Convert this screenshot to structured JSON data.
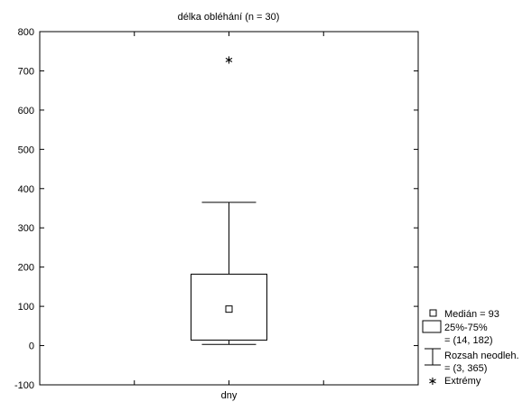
{
  "chart_data": {
    "type": "box",
    "title": "délka obléhání (n = 30)",
    "xlabel": "",
    "ylabel": "",
    "categories": [
      "dny"
    ],
    "ylim": [
      -100,
      800
    ],
    "yticks": [
      -100,
      0,
      100,
      200,
      300,
      400,
      500,
      600,
      700,
      800
    ],
    "grid": false,
    "legend_position": "bottom-right",
    "box": {
      "median": 93,
      "q1": 14,
      "q3": 182,
      "whisker_low": 3,
      "whisker_high": 365,
      "extremes": [
        730
      ]
    },
    "legend": [
      {
        "symbol": "median",
        "lines": [
          "Medián = 93"
        ]
      },
      {
        "symbol": "box",
        "lines": [
          "25%-75%",
          "= (14, 182)"
        ]
      },
      {
        "symbol": "whisker",
        "lines": [
          "Rozsah neodleh.",
          "= (3, 365)"
        ]
      },
      {
        "symbol": "extreme",
        "lines": [
          "Extrémy"
        ]
      }
    ]
  }
}
